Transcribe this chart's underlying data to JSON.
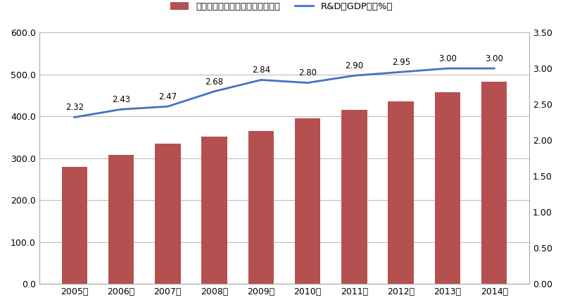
{
  "years": [
    "2005年",
    "2006年",
    "2007年",
    "2008年",
    "2009年",
    "2010年",
    "2011年",
    "2012年",
    "2013年",
    "2014年"
  ],
  "bar_values": [
    280,
    308,
    335,
    352,
    365,
    396,
    415,
    436,
    458,
    482
  ],
  "line_values": [
    2.32,
    2.43,
    2.47,
    2.68,
    2.84,
    2.8,
    2.9,
    2.95,
    3.0,
    3.0
  ],
  "bar_color": "#B55050",
  "line_color": "#4472C4",
  "bar_label": "研究開発費（単位：億台湾ドル）",
  "line_label": "R&D対gdp比（%）",
  "line_label_display": "R&D対gdp比（％）",
  "ylim_left": [
    0,
    600
  ],
  "ylim_right": [
    0.0,
    3.5
  ],
  "yticks_left": [
    0,
    100,
    200,
    300,
    400,
    500,
    600
  ],
  "ytick_labels_left": [
    "0.0",
    "100.0",
    "200.0",
    "300.0",
    "400.0",
    "500.0",
    "600.0"
  ],
  "yticks_right_vals": [
    0.0,
    0.5,
    1.0,
    1.5,
    2.0,
    2.5,
    3.0,
    3.5
  ],
  "ytick_labels_right": [
    "0.00",
    "0.50",
    "1.00",
    "1.50",
    "2.00",
    "2.50",
    "3.00",
    "3.50"
  ],
  "background_color": "#FFFFFF",
  "plot_bg_color": "#FFFFFF",
  "grid_color": "#AAAAAA"
}
